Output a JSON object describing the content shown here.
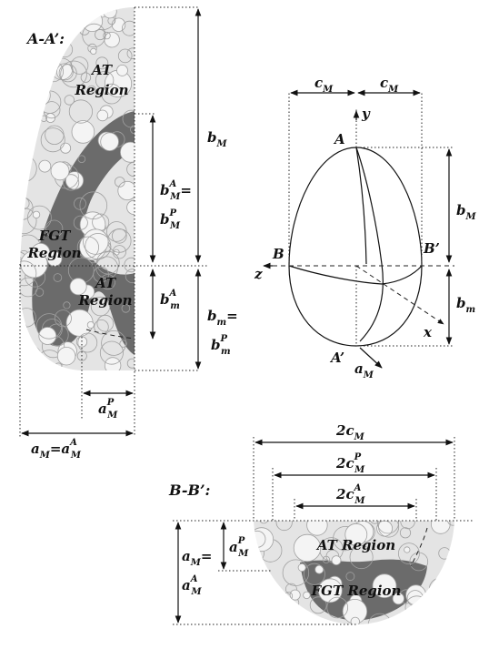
{
  "sections": {
    "aa": "A-A’:",
    "bb": "B-B’:"
  },
  "regions": {
    "at_upper": [
      "AT",
      "Region"
    ],
    "fgt_left": [
      "FGT",
      "Region"
    ],
    "at_lower": [
      "AT",
      "Region"
    ],
    "at_bb": "AT Region",
    "fgt_bb": "FGT Region"
  },
  "points": {
    "A": "A",
    "A_prime": "A’",
    "B": "B",
    "B_prime": "B’"
  },
  "axes": {
    "x": "x",
    "y": "y",
    "z": "z"
  },
  "dims": {
    "bM": {
      "base": "b",
      "sub": "M"
    },
    "bMA_eq": {
      "base": "b",
      "sub": "M",
      "sup": "A",
      "eq": "="
    },
    "bMP": {
      "base": "b",
      "sub": "M",
      "sup": "P"
    },
    "bmA": {
      "base": "b",
      "sub": "m",
      "sup": "A"
    },
    "bm_eq": {
      "base": "b",
      "sub": "m",
      "eq": "="
    },
    "bmP": {
      "base": "b",
      "sub": "m",
      "sup": "P"
    },
    "aMP": {
      "base": "a",
      "sub": "M",
      "sup": "P"
    },
    "aM_aMA": {
      "left_base": "a",
      "left_sub": "M",
      "eq": "=",
      "right_base": "a",
      "right_sub": "M",
      "right_sup": "A"
    },
    "cM_left": {
      "base": "c",
      "sub": "M"
    },
    "cM_right": {
      "base": "c",
      "sub": "M"
    },
    "bM_egg": {
      "base": "b",
      "sub": "M"
    },
    "bm_egg": {
      "base": "b",
      "sub": "m"
    },
    "aM_egg": {
      "base": "a",
      "sub": "M"
    },
    "two_cM": {
      "coef": "2",
      "base": "c",
      "sub": "M"
    },
    "two_cMP": {
      "coef": "2",
      "base": "c",
      "sub": "M",
      "sup": "P"
    },
    "two_cMA": {
      "coef": "2",
      "base": "c",
      "sub": "M",
      "sup": "A"
    },
    "aMP_bb": {
      "base": "a",
      "sub": "M",
      "sup": "P"
    },
    "aM_eq_bb": {
      "base": "a",
      "sub": "M",
      "eq": "="
    },
    "aMA_bb": {
      "base": "a",
      "sub": "M",
      "sup": "A"
    }
  },
  "colors": {
    "at_fill": "#e4e4e4",
    "fgt_fill": "#6b6b6b",
    "circle_stroke": "#a0a0a0",
    "ink": "#111111"
  }
}
